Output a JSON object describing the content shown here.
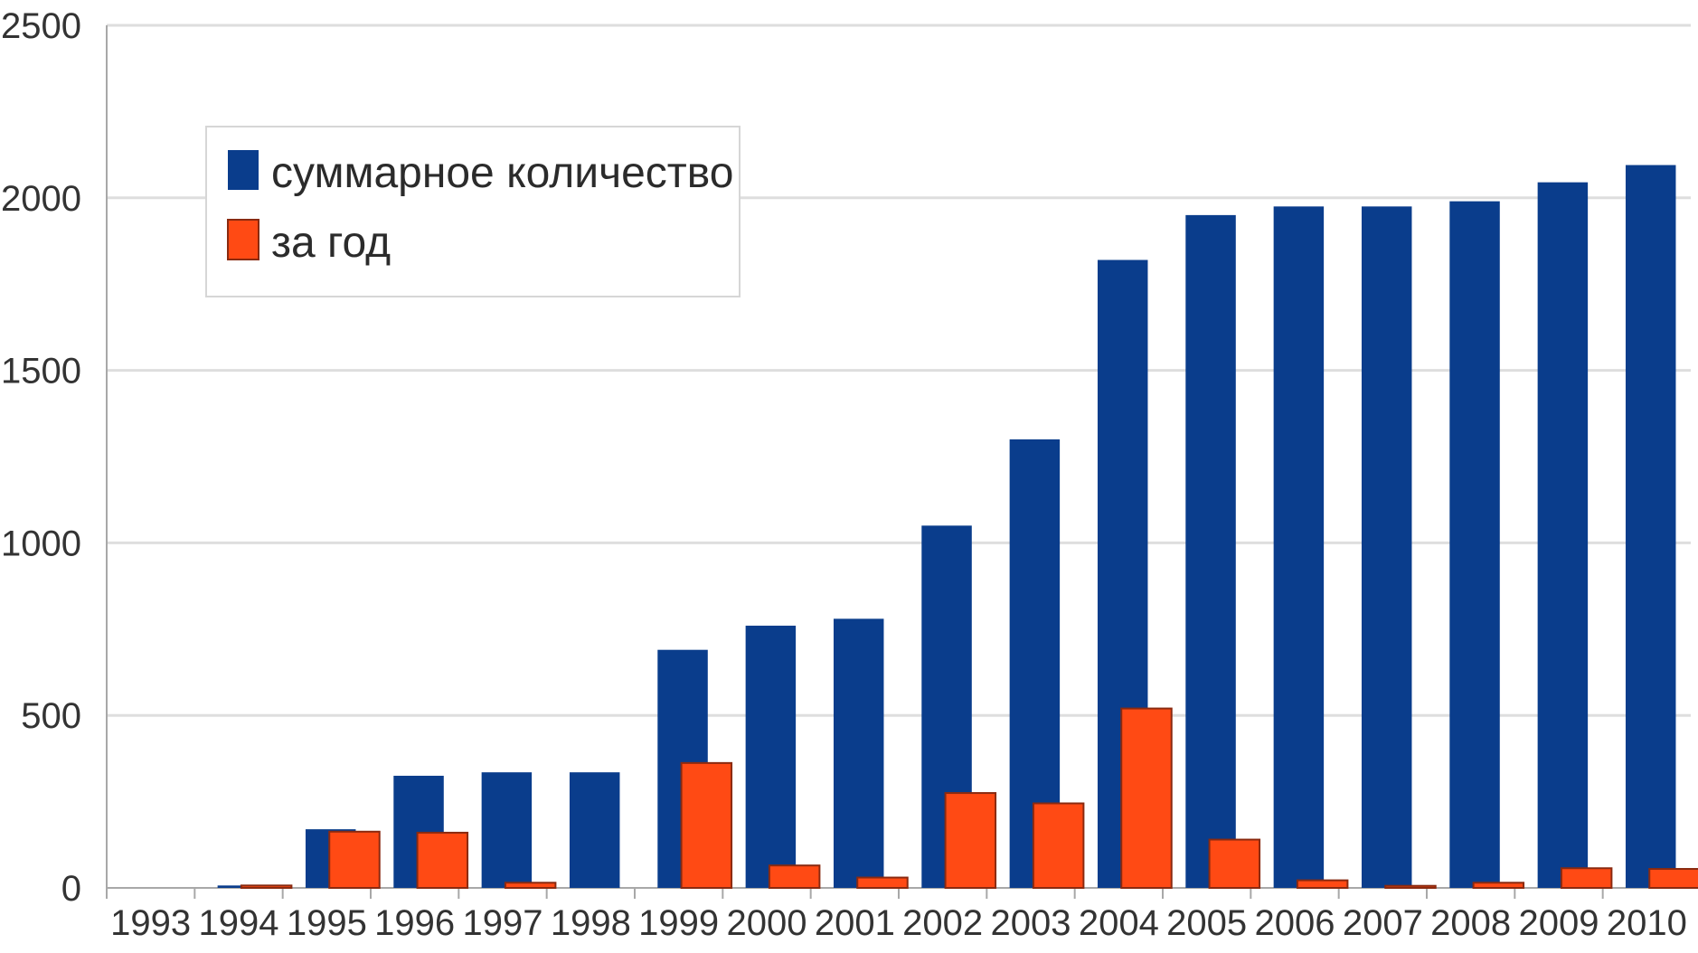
{
  "chart_data": {
    "type": "bar",
    "title": "",
    "xlabel": "",
    "ylabel": "",
    "ylim": [
      0,
      2500
    ],
    "yticks": [
      0,
      500,
      1000,
      1500,
      2000,
      2500
    ],
    "grid": true,
    "legend_position": "top-left",
    "categories": [
      "1993",
      "1994",
      "1995",
      "1996",
      "1997",
      "1998",
      "1999",
      "2000",
      "2001",
      "2002",
      "2003",
      "2004",
      "2005",
      "2006",
      "2007",
      "2008",
      "2009",
      "2010"
    ],
    "series": [
      {
        "name": "суммарное количество",
        "color": "#0a3d8c",
        "values": [
          0,
          7,
          170,
          325,
          335,
          335,
          690,
          760,
          780,
          1050,
          1300,
          1820,
          1950,
          1975,
          1975,
          1990,
          2045,
          2095
        ]
      },
      {
        "name": "за год",
        "color": "#ff4a14",
        "values": [
          0,
          7,
          163,
          160,
          15,
          0,
          362,
          65,
          30,
          275,
          245,
          520,
          140,
          22,
          6,
          15,
          57,
          55
        ]
      }
    ]
  },
  "colors": {
    "grid": "#dedede",
    "axis": "#a8a8a8",
    "bar_outline": "#8a2a10"
  }
}
